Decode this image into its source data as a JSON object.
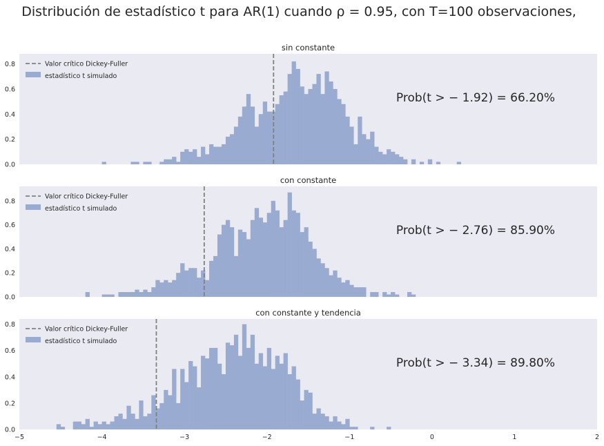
{
  "title": "Distribución de estadístico t para AR(1) cuando ρ = 0.95, con T=100 observaciones,",
  "legend": {
    "critical": "Valor crítico Dickey-Fuller",
    "simulated": "estadístico t simulado"
  },
  "colors": {
    "bar": "#9aabd1",
    "critical_line": "#808080",
    "background": "#eaeaf2"
  },
  "chart_data": [
    {
      "type": "bar",
      "title": "sin constante",
      "critical_value": -1.92,
      "prob_label": "Prob(t > − 1.92) = 66.20%",
      "xlim": [
        -5,
        2
      ],
      "ylim": [
        0,
        0.88
      ],
      "yticks": [
        "0.0",
        "0.2",
        "0.4",
        "0.6",
        "0.8"
      ],
      "grid": false,
      "legend_position": "top-left",
      "bins": [
        [
          -4.0,
          0.02
        ],
        [
          -3.65,
          0.02
        ],
        [
          -3.6,
          0.02
        ],
        [
          -3.5,
          0.02
        ],
        [
          -3.45,
          0.02
        ],
        [
          -3.3,
          0.02
        ],
        [
          -3.25,
          0.04
        ],
        [
          -3.2,
          0.04
        ],
        [
          -3.15,
          0.06
        ],
        [
          -3.1,
          0.02
        ],
        [
          -3.05,
          0.1
        ],
        [
          -3.0,
          0.12
        ],
        [
          -2.95,
          0.1
        ],
        [
          -2.9,
          0.12
        ],
        [
          -2.85,
          0.06
        ],
        [
          -2.8,
          0.14
        ],
        [
          -2.75,
          0.08
        ],
        [
          -2.7,
          0.16
        ],
        [
          -2.65,
          0.14
        ],
        [
          -2.6,
          0.14
        ],
        [
          -2.55,
          0.16
        ],
        [
          -2.5,
          0.22
        ],
        [
          -2.45,
          0.24
        ],
        [
          -2.4,
          0.3
        ],
        [
          -2.35,
          0.38
        ],
        [
          -2.3,
          0.46
        ],
        [
          -2.25,
          0.56
        ],
        [
          -2.2,
          0.46
        ],
        [
          -2.15,
          0.3
        ],
        [
          -2.1,
          0.4
        ],
        [
          -2.05,
          0.5
        ],
        [
          -2.0,
          0.42
        ],
        [
          -1.95,
          0.42
        ],
        [
          -1.9,
          0.48
        ],
        [
          -1.85,
          0.55
        ],
        [
          -1.8,
          0.58
        ],
        [
          -1.75,
          0.72
        ],
        [
          -1.7,
          0.82
        ],
        [
          -1.65,
          0.76
        ],
        [
          -1.6,
          0.62
        ],
        [
          -1.55,
          0.56
        ],
        [
          -1.5,
          0.6
        ],
        [
          -1.45,
          0.64
        ],
        [
          -1.4,
          0.72
        ],
        [
          -1.35,
          0.56
        ],
        [
          -1.3,
          0.74
        ],
        [
          -1.25,
          0.66
        ],
        [
          -1.2,
          0.6
        ],
        [
          -1.15,
          0.52
        ],
        [
          -1.1,
          0.48
        ],
        [
          -1.05,
          0.38
        ],
        [
          -1.0,
          0.3
        ],
        [
          -0.95,
          0.16
        ],
        [
          -0.9,
          0.38
        ],
        [
          -0.85,
          0.24
        ],
        [
          -0.8,
          0.2
        ],
        [
          -0.75,
          0.26
        ],
        [
          -0.7,
          0.14
        ],
        [
          -0.65,
          0.1
        ],
        [
          -0.6,
          0.08
        ],
        [
          -0.55,
          0.12
        ],
        [
          -0.5,
          0.1
        ],
        [
          -0.45,
          0.08
        ],
        [
          -0.4,
          0.06
        ],
        [
          -0.35,
          0.04
        ],
        [
          -0.25,
          0.04
        ],
        [
          -0.15,
          0.02
        ],
        [
          -0.05,
          0.04
        ],
        [
          0.05,
          0.02
        ],
        [
          0.3,
          0.02
        ]
      ]
    },
    {
      "type": "bar",
      "title": "con constante",
      "critical_value": -2.76,
      "prob_label": "Prob(t > − 2.76) = 85.90%",
      "xlim": [
        -5,
        2
      ],
      "ylim": [
        0,
        0.92
      ],
      "yticks": [
        "0.0",
        "0.2",
        "0.4",
        "0.6",
        "0.8"
      ],
      "grid": false,
      "legend_position": "top-left",
      "bins": [
        [
          -4.2,
          0.04
        ],
        [
          -4.0,
          0.02
        ],
        [
          -3.95,
          0.02
        ],
        [
          -3.9,
          0.02
        ],
        [
          -3.8,
          0.04
        ],
        [
          -3.75,
          0.04
        ],
        [
          -3.7,
          0.04
        ],
        [
          -3.65,
          0.04
        ],
        [
          -3.6,
          0.06
        ],
        [
          -3.55,
          0.04
        ],
        [
          -3.5,
          0.06
        ],
        [
          -3.45,
          0.04
        ],
        [
          -3.4,
          0.08
        ],
        [
          -3.35,
          0.14
        ],
        [
          -3.3,
          0.12
        ],
        [
          -3.25,
          0.14
        ],
        [
          -3.2,
          0.12
        ],
        [
          -3.15,
          0.14
        ],
        [
          -3.1,
          0.2
        ],
        [
          -3.05,
          0.28
        ],
        [
          -3.0,
          0.22
        ],
        [
          -2.95,
          0.24
        ],
        [
          -2.9,
          0.24
        ],
        [
          -2.85,
          0.16
        ],
        [
          -2.8,
          0.22
        ],
        [
          -2.75,
          0.14
        ],
        [
          -2.7,
          0.3
        ],
        [
          -2.65,
          0.34
        ],
        [
          -2.6,
          0.52
        ],
        [
          -2.55,
          0.6
        ],
        [
          -2.5,
          0.64
        ],
        [
          -2.45,
          0.58
        ],
        [
          -2.4,
          0.34
        ],
        [
          -2.35,
          0.56
        ],
        [
          -2.3,
          0.54
        ],
        [
          -2.25,
          0.48
        ],
        [
          -2.2,
          0.64
        ],
        [
          -2.15,
          0.74
        ],
        [
          -2.1,
          0.66
        ],
        [
          -2.05,
          0.62
        ],
        [
          -2.0,
          0.7
        ],
        [
          -1.95,
          0.8
        ],
        [
          -1.9,
          0.72
        ],
        [
          -1.85,
          0.58
        ],
        [
          -1.8,
          0.64
        ],
        [
          -1.75,
          0.87
        ],
        [
          -1.7,
          0.72
        ],
        [
          -1.65,
          0.7
        ],
        [
          -1.6,
          0.54
        ],
        [
          -1.55,
          0.58
        ],
        [
          -1.5,
          0.46
        ],
        [
          -1.45,
          0.4
        ],
        [
          -1.4,
          0.32
        ],
        [
          -1.35,
          0.28
        ],
        [
          -1.3,
          0.24
        ],
        [
          -1.25,
          0.18
        ],
        [
          -1.2,
          0.22
        ],
        [
          -1.15,
          0.16
        ],
        [
          -1.1,
          0.12
        ],
        [
          -1.05,
          0.14
        ],
        [
          -1.0,
          0.1
        ],
        [
          -0.95,
          0.08
        ],
        [
          -0.9,
          0.08
        ],
        [
          -0.85,
          0.08
        ],
        [
          -0.75,
          0.04
        ],
        [
          -0.7,
          0.04
        ],
        [
          -0.6,
          0.04
        ],
        [
          -0.55,
          0.02
        ],
        [
          -0.5,
          0.04
        ],
        [
          -0.45,
          0.02
        ],
        [
          -0.3,
          0.04
        ],
        [
          -0.25,
          0.02
        ]
      ]
    },
    {
      "type": "bar",
      "title": "con constante y tendencia",
      "critical_value": -3.34,
      "prob_label": "Prob(t > − 3.34) = 89.80%",
      "xlim": [
        -5,
        2
      ],
      "ylim": [
        0,
        0.84
      ],
      "yticks": [
        "0.0",
        "0.2",
        "0.4",
        "0.6",
        "0.8"
      ],
      "xticks": [
        "−5",
        "−4",
        "−3",
        "−2",
        "−1",
        "0",
        "1",
        "2"
      ],
      "grid": false,
      "legend_position": "top-left",
      "bins": [
        [
          -4.55,
          0.04
        ],
        [
          -4.5,
          0.02
        ],
        [
          -4.35,
          0.06
        ],
        [
          -4.3,
          0.06
        ],
        [
          -4.25,
          0.04
        ],
        [
          -4.2,
          0.08
        ],
        [
          -4.15,
          0.02
        ],
        [
          -4.1,
          0.06
        ],
        [
          -4.05,
          0.04
        ],
        [
          -4.0,
          0.06
        ],
        [
          -3.95,
          0.04
        ],
        [
          -3.9,
          0.06
        ],
        [
          -3.85,
          0.1
        ],
        [
          -3.8,
          0.12
        ],
        [
          -3.75,
          0.08
        ],
        [
          -3.7,
          0.18
        ],
        [
          -3.65,
          0.12
        ],
        [
          -3.6,
          0.08
        ],
        [
          -3.55,
          0.22
        ],
        [
          -3.5,
          0.1
        ],
        [
          -3.45,
          0.12
        ],
        [
          -3.4,
          0.26
        ],
        [
          -3.35,
          0.16
        ],
        [
          -3.3,
          0.2
        ],
        [
          -3.25,
          0.3
        ],
        [
          -3.2,
          0.26
        ],
        [
          -3.15,
          0.46
        ],
        [
          -3.1,
          0.2
        ],
        [
          -3.05,
          0.46
        ],
        [
          -3.0,
          0.36
        ],
        [
          -2.95,
          0.52
        ],
        [
          -2.9,
          0.48
        ],
        [
          -2.85,
          0.32
        ],
        [
          -2.8,
          0.56
        ],
        [
          -2.75,
          0.54
        ],
        [
          -2.7,
          0.62
        ],
        [
          -2.65,
          0.62
        ],
        [
          -2.6,
          0.5
        ],
        [
          -2.55,
          0.42
        ],
        [
          -2.5,
          0.66
        ],
        [
          -2.45,
          0.64
        ],
        [
          -2.4,
          0.72
        ],
        [
          -2.35,
          0.56
        ],
        [
          -2.3,
          0.8
        ],
        [
          -2.25,
          0.62
        ],
        [
          -2.2,
          0.72
        ],
        [
          -2.15,
          0.5
        ],
        [
          -2.1,
          0.58
        ],
        [
          -2.05,
          0.48
        ],
        [
          -2.0,
          0.62
        ],
        [
          -1.95,
          0.46
        ],
        [
          -1.9,
          0.56
        ],
        [
          -1.85,
          0.5
        ],
        [
          -1.8,
          0.58
        ],
        [
          -1.75,
          0.42
        ],
        [
          -1.7,
          0.48
        ],
        [
          -1.65,
          0.38
        ],
        [
          -1.6,
          0.22
        ],
        [
          -1.55,
          0.3
        ],
        [
          -1.5,
          0.28
        ],
        [
          -1.45,
          0.12
        ],
        [
          -1.4,
          0.16
        ],
        [
          -1.35,
          0.12
        ],
        [
          -1.3,
          0.1
        ],
        [
          -1.25,
          0.06
        ],
        [
          -1.2,
          0.1
        ],
        [
          -1.15,
          0.06
        ],
        [
          -1.1,
          0.04
        ],
        [
          -1.05,
          0.08
        ],
        [
          -1.0,
          0.02
        ],
        [
          -0.95,
          0.02
        ],
        [
          -0.75,
          0.02
        ],
        [
          -0.55,
          0.02
        ]
      ]
    }
  ]
}
